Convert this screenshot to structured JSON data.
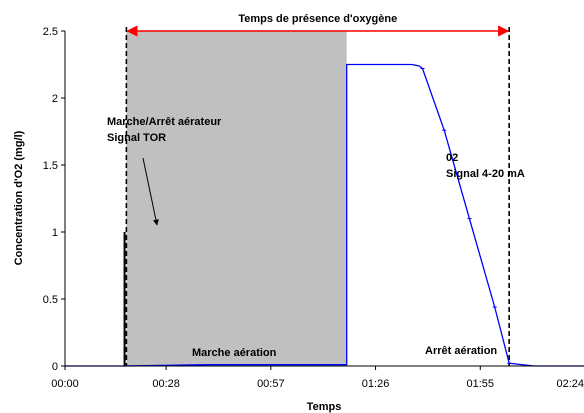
{
  "chart_data": {
    "type": "line",
    "xlabel": "Temps",
    "ylabel": "Concentration d'O2 (mg/l)",
    "xlim": [
      0,
      144
    ],
    "ylim": [
      0,
      2.5
    ],
    "grid": false,
    "x_tick_values": [
      0,
      28,
      57,
      86,
      115,
      144
    ],
    "x_ticks": [
      "00:00",
      "00:28",
      "00:57",
      "01:26",
      "01:55",
      "02:24"
    ],
    "y_ticks": [
      "0",
      "0.5",
      "1",
      "1.5",
      "2",
      "2.5"
    ],
    "y_tick_values": [
      0,
      0.5,
      1,
      1.5,
      2,
      2.5
    ],
    "series": [
      {
        "color": "#0000ff",
        "points": [
          [
            0,
            0
          ],
          [
            16,
            0
          ],
          [
            40,
            0.01
          ],
          [
            78,
            0.01
          ],
          [
            78,
            2.25
          ],
          [
            95,
            2.25
          ],
          [
            96,
            2.25
          ],
          [
            98,
            2.24
          ],
          [
            99,
            2.22
          ],
          [
            105,
            1.76
          ],
          [
            112,
            1.1
          ],
          [
            119,
            0.44
          ],
          [
            123,
            0.02
          ],
          [
            130,
            0
          ],
          [
            144,
            0
          ]
        ]
      }
    ],
    "shaded_region": {
      "x": [
        17,
        78
      ],
      "color": "#c0c0c0"
    },
    "tor_signal": {
      "x": 16.5,
      "y": 1.0,
      "color": "#000000"
    },
    "dashed_markers": [
      17,
      123
    ],
    "span_arrow": {
      "x": [
        17,
        123
      ],
      "y": 2.5,
      "color": "#ff0000",
      "label": "Temps de présence d'oxygène"
    },
    "annotations": {
      "aerator_line1": "Marche/Arrêt aérateur",
      "aerator_line2": "Signal TOR",
      "o2_line1": "02",
      "o2_line2": "Signal 4-20 mA",
      "marche": "Marche aération",
      "arret": "Arrêt aération"
    }
  }
}
